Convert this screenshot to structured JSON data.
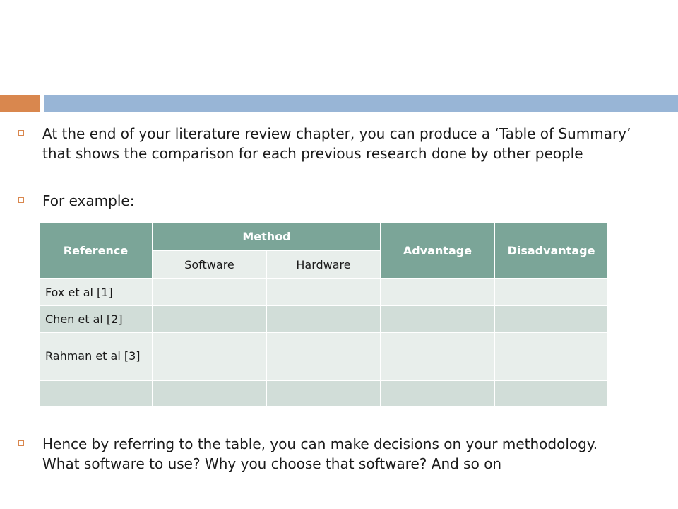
{
  "bullets": [
    "At the end of your literature review chapter, you can produce a ‘Table of Summary’ that shows the comparison for each previous research done by other people",
    "For example:",
    "Hence by referring to the table, you can make decisions on your methodology. What software to use? Why you choose that software? And so on"
  ],
  "table": {
    "headers": {
      "reference": "Reference",
      "method": "Method",
      "advantage": "Advantage",
      "disadvantage": "Disadvantage",
      "software": "Software",
      "hardware": "Hardware"
    },
    "rows": [
      {
        "reference": "Fox et al [1]"
      },
      {
        "reference": "Chen et al [2]"
      },
      {
        "reference": "Rahman et al [3]"
      },
      {
        "reference": ""
      }
    ]
  },
  "colors": {
    "accent_orange": "#d9874e",
    "accent_blue": "#98b5d6",
    "table_header": "#7ba598",
    "row_light": "#e8eeeb",
    "row_dark": "#d1ddd8"
  }
}
